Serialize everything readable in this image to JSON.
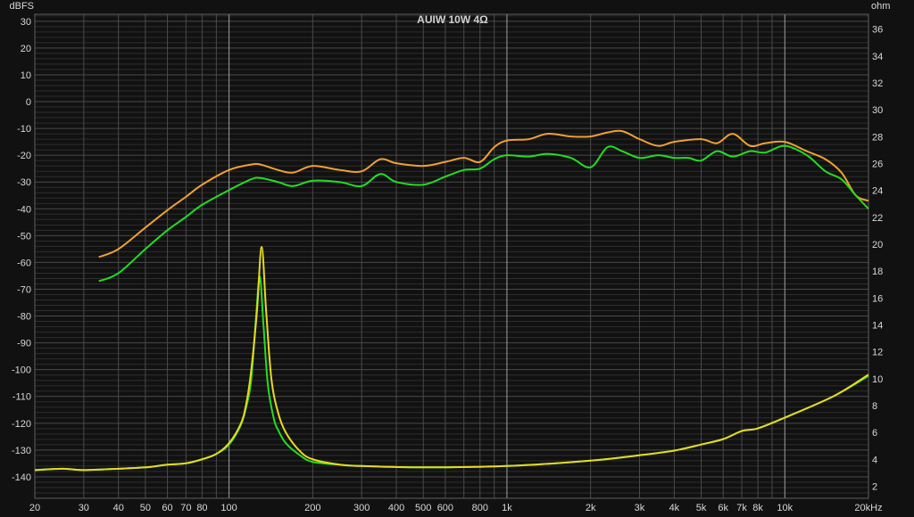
{
  "chart_data": {
    "type": "line",
    "title": "AUIW 10W 4Ω",
    "ylabel": "dBFS",
    "y2label": "ohm",
    "xunit": "kHz",
    "xscale": "log",
    "xlim": [
      20,
      20000
    ],
    "ylim": [
      -148,
      32.6
    ],
    "y2lim": [
      1.1,
      37.1
    ],
    "grid": true,
    "colors": {
      "background": "#111111",
      "grid_minor": "#2e2e2e",
      "grid_major": "#4a4a4a",
      "grid_decade": "#a0a0a0"
    },
    "x_ticks": [
      {
        "v": 20,
        "label": "20"
      },
      {
        "v": 30,
        "label": "30"
      },
      {
        "v": 40,
        "label": "40"
      },
      {
        "v": 50,
        "label": "50"
      },
      {
        "v": 60,
        "label": "60"
      },
      {
        "v": 70,
        "label": "70"
      },
      {
        "v": 80,
        "label": "80"
      },
      {
        "v": 90,
        "label": ""
      },
      {
        "v": 100,
        "label": "100"
      },
      {
        "v": 200,
        "label": "200"
      },
      {
        "v": 300,
        "label": "300"
      },
      {
        "v": 400,
        "label": "400"
      },
      {
        "v": 500,
        "label": "500"
      },
      {
        "v": 600,
        "label": "600"
      },
      {
        "v": 700,
        "label": ""
      },
      {
        "v": 800,
        "label": "800"
      },
      {
        "v": 900,
        "label": ""
      },
      {
        "v": 1000,
        "label": "1k"
      },
      {
        "v": 2000,
        "label": "2k"
      },
      {
        "v": 3000,
        "label": "3k"
      },
      {
        "v": 4000,
        "label": "4k"
      },
      {
        "v": 5000,
        "label": "5k"
      },
      {
        "v": 6000,
        "label": "6k"
      },
      {
        "v": 7000,
        "label": "7k"
      },
      {
        "v": 8000,
        "label": "8k"
      },
      {
        "v": 9000,
        "label": ""
      },
      {
        "v": 10000,
        "label": "10k"
      },
      {
        "v": 20000,
        "label": "20kHz"
      }
    ],
    "y_ticks": [
      30,
      20,
      10,
      0,
      -10,
      -20,
      -30,
      -40,
      -50,
      -60,
      -70,
      -80,
      -90,
      -100,
      -110,
      -120,
      -130,
      -140
    ],
    "y2_ticks": [
      36,
      34,
      32,
      30,
      28,
      26,
      24,
      22,
      20,
      18,
      16,
      14,
      12,
      10,
      8,
      6,
      4,
      2
    ],
    "series": [
      {
        "axis": "left",
        "color": "#f0a030",
        "x": [
          34,
          40,
          50,
          60,
          70,
          80,
          100,
          120,
          130,
          150,
          170,
          200,
          250,
          300,
          350,
          400,
          500,
          600,
          700,
          800,
          900,
          1000,
          1200,
          1400,
          1700,
          2000,
          2300,
          2600,
          3000,
          3500,
          4000,
          5000,
          5700,
          6500,
          7500,
          8500,
          10000,
          12000,
          14000,
          16000,
          18000,
          20000
        ],
        "y": [
          -58,
          -55,
          -47,
          -40.5,
          -35.5,
          -31,
          -25.5,
          -23.5,
          -23.5,
          -25.5,
          -26.5,
          -24,
          -25.5,
          -26,
          -21.5,
          -23,
          -24,
          -22.5,
          -21,
          -22.5,
          -17,
          -14.5,
          -14,
          -12,
          -13,
          -13,
          -11.5,
          -11,
          -14,
          -16.5,
          -15,
          -14,
          -15.5,
          -12,
          -16.5,
          -15.5,
          -15,
          -18.5,
          -21.5,
          -26.5,
          -35,
          -37
        ]
      },
      {
        "axis": "left",
        "color": "#22dd22",
        "x": [
          34,
          40,
          50,
          60,
          70,
          80,
          100,
          120,
          130,
          150,
          170,
          200,
          250,
          300,
          350,
          400,
          500,
          600,
          700,
          800,
          900,
          1000,
          1200,
          1400,
          1700,
          2000,
          2300,
          2600,
          3000,
          3500,
          4000,
          4500,
          5000,
          5700,
          6500,
          7500,
          8500,
          10000,
          12000,
          14000,
          16000,
          18000,
          20000
        ],
        "y": [
          -67,
          -64,
          -55,
          -48,
          -43,
          -38.5,
          -33,
          -29,
          -28.5,
          -30,
          -31.5,
          -29.5,
          -30,
          -31.5,
          -27,
          -30,
          -31,
          -28,
          -25.5,
          -25,
          -21.5,
          -20,
          -20.5,
          -19.5,
          -21,
          -24.5,
          -17,
          -18.5,
          -21,
          -20,
          -21,
          -21,
          -22,
          -18.5,
          -20.5,
          -18.5,
          -19,
          -16.5,
          -20,
          -26,
          -29,
          -35,
          -40
        ]
      },
      {
        "axis": "right",
        "color": "#22dd22",
        "x": [
          20,
          25,
          30,
          40,
          50,
          60,
          70,
          80,
          90,
          100,
          110,
          115,
          120,
          125,
          129,
          133,
          138,
          145,
          150,
          160,
          180,
          200,
          250,
          300,
          500,
          1000,
          2000,
          3000,
          4000,
          5000,
          6000,
          7000,
          8000,
          10000,
          15000,
          20000
        ],
        "y": [
          3.2,
          3.3,
          3.2,
          3.3,
          3.4,
          3.6,
          3.7,
          4.0,
          4.4,
          5.1,
          6.5,
          7.8,
          9.8,
          14.5,
          17.6,
          14,
          9.5,
          7.0,
          6.2,
          5.2,
          4.3,
          3.8,
          3.6,
          3.5,
          3.4,
          3.5,
          3.9,
          4.3,
          4.65,
          5.1,
          5.5,
          6.1,
          6.3,
          7.1,
          8.7,
          10.2
        ]
      },
      {
        "axis": "right",
        "color": "#e8d820",
        "x": [
          20,
          25,
          30,
          40,
          50,
          60,
          70,
          80,
          90,
          100,
          110,
          115,
          120,
          126,
          131,
          136,
          142,
          150,
          160,
          180,
          200,
          250,
          300,
          500,
          1000,
          2000,
          3000,
          4000,
          5000,
          6000,
          7000,
          8000,
          10000,
          15000,
          20000
        ],
        "y": [
          3.2,
          3.3,
          3.2,
          3.3,
          3.4,
          3.6,
          3.7,
          4.0,
          4.4,
          5.2,
          6.6,
          8,
          10.5,
          15,
          19.8,
          15,
          10,
          7.5,
          6.0,
          4.6,
          4.0,
          3.6,
          3.5,
          3.4,
          3.5,
          3.9,
          4.3,
          4.65,
          5.1,
          5.5,
          6.1,
          6.3,
          7.1,
          8.7,
          10.3
        ]
      }
    ]
  }
}
